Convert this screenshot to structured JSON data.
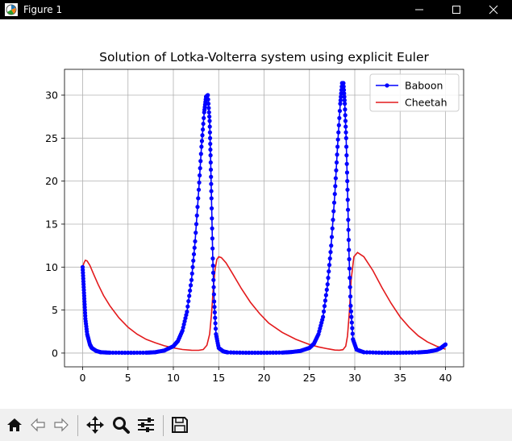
{
  "window": {
    "title": "Figure 1",
    "icons": {
      "app": "matplotlib-figure-icon",
      "minimize": "minimize-icon",
      "maximize": "maximize-icon",
      "close": "close-icon"
    }
  },
  "toolbar": {
    "items": [
      {
        "name": "home-button",
        "icon": "home-icon"
      },
      {
        "name": "back-button",
        "icon": "arrow-left-icon"
      },
      {
        "name": "forward-button",
        "icon": "arrow-right-icon"
      },
      {
        "name": "pan-button",
        "icon": "move-icon"
      },
      {
        "name": "zoom-button",
        "icon": "magnifier-icon"
      },
      {
        "name": "configure-subplots-button",
        "icon": "sliders-icon"
      },
      {
        "name": "save-button",
        "icon": "floppy-disk-icon"
      }
    ]
  },
  "chart_data": {
    "type": "line",
    "title": "Solution of Lotka-Volterra system using explicit Euler",
    "xlabel": "",
    "ylabel": "",
    "xlim": [
      -2,
      42
    ],
    "ylim": [
      -1.6,
      33
    ],
    "xticks": [
      0,
      5,
      10,
      15,
      20,
      25,
      30,
      35,
      40
    ],
    "yticks": [
      0,
      5,
      10,
      15,
      20,
      25,
      30
    ],
    "grid": true,
    "legend": "top-right",
    "series": [
      {
        "name": "Baboon",
        "color": "#0000ff",
        "marker": "dot",
        "x": [
          0,
          0.1,
          0.2,
          0.3,
          0.5,
          0.8,
          1.0,
          1.5,
          2.0,
          3.0,
          5.0,
          7.0,
          8.0,
          9.0,
          10.0,
          10.5,
          11.0,
          11.5,
          12.0,
          12.4,
          12.8,
          13.1,
          13.4,
          13.6,
          13.8,
          14.0,
          14.1,
          14.2,
          14.35,
          14.5,
          14.7,
          15.0,
          15.5,
          16.0,
          18.0,
          20.0,
          22.0,
          23.0,
          24.0,
          25.0,
          25.5,
          26.0,
          26.5,
          27.0,
          27.4,
          27.8,
          28.1,
          28.4,
          28.6,
          28.75,
          28.9,
          29.05,
          29.2,
          29.35,
          29.55,
          29.8,
          30.2,
          31.0,
          33.0,
          35.0,
          37.0,
          38.0,
          39.0,
          39.5,
          40.0
        ],
        "y": [
          10,
          8,
          6,
          4,
          2.2,
          1.0,
          0.6,
          0.25,
          0.1,
          0.05,
          0.04,
          0.05,
          0.1,
          0.3,
          0.8,
          1.4,
          2.6,
          4.8,
          8.5,
          13,
          19,
          24,
          28,
          29.8,
          30,
          27,
          23,
          18,
          11,
          6,
          2.2,
          0.6,
          0.2,
          0.08,
          0.04,
          0.04,
          0.06,
          0.12,
          0.25,
          0.6,
          1.1,
          2.2,
          4.2,
          8,
          12.5,
          18.5,
          24,
          29,
          31.4,
          31.4,
          29,
          25,
          19,
          12,
          5.5,
          1.6,
          0.4,
          0.1,
          0.04,
          0.04,
          0.08,
          0.15,
          0.35,
          0.6,
          1.0
        ]
      },
      {
        "name": "Cheetah",
        "color": "#e31a1c",
        "marker": "none",
        "x": [
          0,
          0.15,
          0.3,
          0.5,
          0.8,
          1.2,
          1.7,
          2.3,
          3.0,
          4.0,
          5.0,
          6.0,
          7.0,
          8.0,
          9.0,
          10.0,
          11.0,
          12.0,
          12.8,
          13.3,
          13.7,
          14.0,
          14.2,
          14.4,
          14.6,
          14.8,
          15.0,
          15.3,
          15.8,
          16.5,
          17.5,
          18.5,
          19.5,
          20.5,
          22.0,
          23.5,
          25.0,
          26.0,
          27.0,
          27.8,
          28.3,
          28.7,
          29.0,
          29.2,
          29.4,
          29.6,
          29.9,
          30.3,
          31.0,
          32.0,
          33.0,
          34.0,
          35.0,
          36.0,
          37.0,
          38.0,
          39.0,
          40.0
        ],
        "y": [
          10,
          10.5,
          10.8,
          10.7,
          10.2,
          9.2,
          8.0,
          6.7,
          5.5,
          4.1,
          3.0,
          2.2,
          1.6,
          1.2,
          0.85,
          0.6,
          0.42,
          0.33,
          0.32,
          0.42,
          0.9,
          2.2,
          4.5,
          7.5,
          9.8,
          10.9,
          11.2,
          11.1,
          10.5,
          9.3,
          7.5,
          5.9,
          4.6,
          3.5,
          2.4,
          1.6,
          1.0,
          0.72,
          0.5,
          0.35,
          0.33,
          0.4,
          0.8,
          2.0,
          4.8,
          8.5,
          11.2,
          11.7,
          11.2,
          9.6,
          7.6,
          5.8,
          4.2,
          3.0,
          2.0,
          1.3,
          0.8,
          0.45
        ]
      }
    ]
  }
}
